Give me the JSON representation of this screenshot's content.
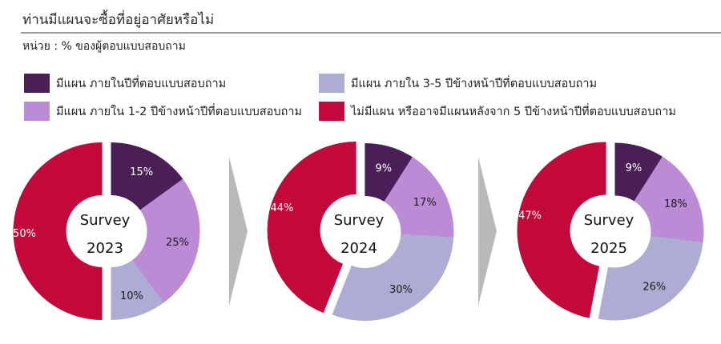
{
  "header": {
    "title": "ท่านมีแผนจะซื้อที่อยู่อาศัยหรือไม่",
    "unit": "หน่วย : % ของผู้ตอบแบบสอบถาม"
  },
  "legend": [
    {
      "key": "within_year",
      "label": "มีแผน ภายในปีที่ตอบแบบสอบถาม",
      "color": "#4a1f57"
    },
    {
      "key": "in_1_2",
      "label": "มีแผน ภายใน 1-2 ปีข้างหน้าปีที่ตอบแบบสอบถาม",
      "color": "#bb8bd6"
    },
    {
      "key": "in_3_5",
      "label": "มีแผน ภายใน 3-5 ปีข้างหน้าปีที่ตอบแบบสอบถาม",
      "color": "#adadd3"
    },
    {
      "key": "no_plan",
      "label": "ไม่มีแผน หรืออาจมีแผนหลังจาก 5 ปีข้างหน้าปีที่ตอบแบบสอบถาม",
      "color": "#c2093a"
    }
  ],
  "chart_data": [
    {
      "type": "pie",
      "title": "Survey 2023",
      "center_label": [
        "Survey",
        "2023"
      ],
      "categories": [
        "มีแผน ภายในปีที่ตอบแบบสอบถาม",
        "มีแผน ภายใน 1-2 ปีข้างหน้าปีที่ตอบแบบสอบถาม",
        "มีแผน ภายใน 3-5 ปีข้างหน้าปีที่ตอบแบบสอบถาม",
        "ไม่มีแผน หรืออาจมีแผนหลังจาก 5 ปีข้างหน้าปีที่ตอบแบบสอบถาม"
      ],
      "values": [
        15,
        25,
        10,
        50
      ],
      "labels": [
        "15%",
        "25%",
        "10%",
        "50%"
      ],
      "unit": "%",
      "donut": true,
      "exploded": "ไม่มีแผน หรืออาจมีแผนหลังจาก 5 ปีข้างหน้าปีที่ตอบแบบสอบถาม"
    },
    {
      "type": "pie",
      "title": "Survey 2024",
      "center_label": [
        "Survey",
        "2024"
      ],
      "categories": [
        "มีแผน ภายในปีที่ตอบแบบสอบถาม",
        "มีแผน ภายใน 1-2 ปีข้างหน้าปีที่ตอบแบบสอบถาม",
        "มีแผน ภายใน 3-5 ปีข้างหน้าปีที่ตอบแบบสอบถาม",
        "ไม่มีแผน หรืออาจมีแผนหลังจาก 5 ปีข้างหน้าปีที่ตอบแบบสอบถาม"
      ],
      "values": [
        9,
        17,
        30,
        44
      ],
      "labels": [
        "9%",
        "17%",
        "30%",
        "44%"
      ],
      "unit": "%",
      "donut": true,
      "exploded": "ไม่มีแผน หรืออาจมีแผนหลังจาก 5 ปีข้างหน้าปีที่ตอบแบบสอบถาม"
    },
    {
      "type": "pie",
      "title": "Survey 2025",
      "center_label": [
        "Survey",
        "2025"
      ],
      "categories": [
        "มีแผน ภายในปีที่ตอบแบบสอบถาม",
        "มีแผน ภายใน 1-2 ปีข้างหน้าปีที่ตอบแบบสอบถาม",
        "มีแผน ภายใน 3-5 ปีข้างหน้าปีที่ตอบแบบสอบถาม",
        "ไม่มีแผน หรืออาจมีแผนหลังจาก 5 ปีข้างหน้าปีที่ตอบแบบสอบถาม"
      ],
      "values": [
        9,
        18,
        26,
        47
      ],
      "labels": [
        "9%",
        "18%",
        "26%",
        "47%"
      ],
      "unit": "%",
      "donut": true,
      "exploded": "ไม่มีแผน หรืออาจมีแผนหลังจาก 5 ปีข้างหน้าปีที่ตอบแบบสอบถาม"
    }
  ],
  "colors": {
    "slices": [
      "#4a1f57",
      "#bb8bd6",
      "#adadd3",
      "#c2093a"
    ],
    "label_text": [
      "#ffffff",
      "#1a1a1a",
      "#1a1a1a",
      "#ffffff"
    ],
    "arrow": "#b9b9b9",
    "rule": "#9c9c9c"
  }
}
